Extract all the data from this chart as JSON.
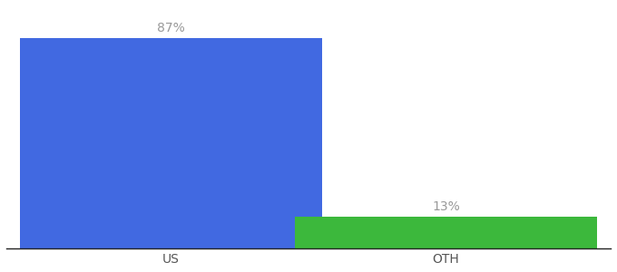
{
  "categories": [
    "US",
    "OTH"
  ],
  "values": [
    87,
    13
  ],
  "bar_colors": [
    "#4169E1",
    "#3CB83C"
  ],
  "labels": [
    "87%",
    "13%"
  ],
  "background_color": "#ffffff",
  "bar_width": 0.55,
  "x_positions": [
    0.3,
    0.8
  ],
  "xlim": [
    0.0,
    1.1
  ],
  "ylim": [
    0,
    100
  ],
  "label_fontsize": 10,
  "tick_fontsize": 10,
  "label_color": "#999999",
  "tick_color": "#555555",
  "spine_color": "#222222"
}
